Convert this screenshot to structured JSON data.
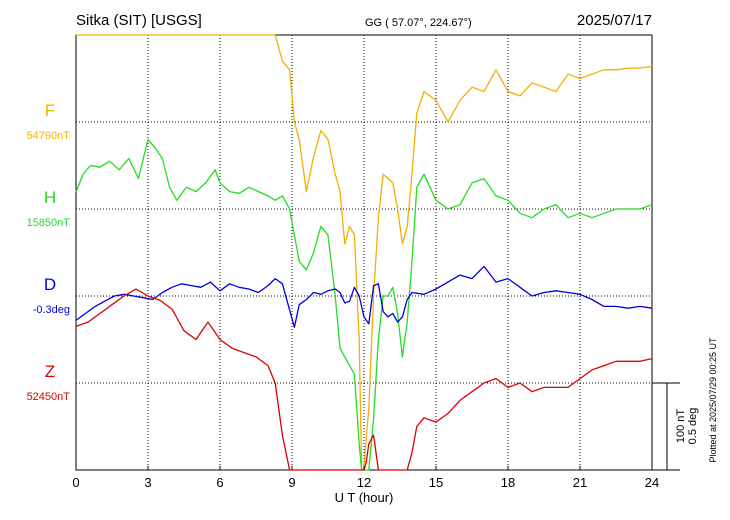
{
  "header": {
    "station": "Sitka (SIT)  [USGS]",
    "coords": "GG ( 57.07°, 224.67°)",
    "date": "2025/07/17"
  },
  "footer": {
    "xlabel": "U T (hour)",
    "plotted": "Plotted at 2025/07/29 00:25 UT"
  },
  "scale": {
    "nt": "100 nT",
    "deg": "0.5 deg"
  },
  "chart_data": {
    "type": "line",
    "xlabel": "U T (hour)",
    "xlim": [
      0,
      24
    ],
    "xticks": [
      0,
      3,
      6,
      9,
      12,
      15,
      18,
      21,
      24
    ],
    "xtick_labels": [
      "0",
      "3",
      "6",
      "9",
      "12",
      "15",
      "18",
      "21",
      "24"
    ],
    "grid": true,
    "y_units": "nT (D in deg); each series plotted relative to its baseline, 100 nT per scale division",
    "series": [
      {
        "name": "F",
        "baseline_label": "54790nT",
        "color": "#f2b000",
        "x": [
          0,
          0.4,
          0.8,
          1.2,
          1.6,
          2.0,
          2.5,
          3.0,
          3.5,
          4.0,
          4.5,
          5.0,
          5.5,
          5.8,
          6.0,
          6.3,
          6.8,
          7.2,
          7.6,
          8.0,
          8.3,
          8.6,
          8.9,
          9.1,
          9.3,
          9.6,
          9.9,
          10.2,
          10.5,
          10.8,
          11.0,
          11.2,
          11.4,
          11.6,
          11.8,
          11.9,
          12.0,
          12.1,
          12.2,
          12.4,
          12.6,
          12.8,
          13.0,
          13.2,
          13.4,
          13.6,
          13.8,
          14.0,
          14.2,
          14.5,
          15.0,
          15.5,
          16.0,
          16.5,
          17.0,
          17.5,
          18.0,
          18.5,
          19.0,
          19.5,
          20.0,
          20.5,
          21.0,
          21.5,
          22.0,
          22.5,
          23.0,
          23.5,
          24.0
        ],
        "values": [
          132,
          128,
          140,
          152,
          185,
          210,
          220,
          220,
          218,
          210,
          202,
          196,
          190,
          206,
          192,
          168,
          164,
          150,
          150,
          142,
          110,
          70,
          60,
          0,
          -20,
          -80,
          -40,
          -10,
          -20,
          -60,
          -80,
          -140,
          -120,
          -130,
          -250,
          -430,
          -445,
          -360,
          -330,
          -200,
          -110,
          -60,
          -65,
          -70,
          -100,
          -140,
          -120,
          -60,
          10,
          35,
          25,
          0,
          25,
          40,
          35,
          60,
          35,
          30,
          45,
          40,
          35,
          55,
          50,
          55,
          60,
          60,
          62,
          62,
          64
        ]
      },
      {
        "name": "H",
        "baseline_label": "15850nT",
        "color": "#22dd22",
        "x": [
          0,
          0.3,
          0.6,
          1.0,
          1.4,
          1.8,
          2.2,
          2.6,
          3.0,
          3.3,
          3.6,
          3.9,
          4.2,
          4.6,
          5.0,
          5.4,
          5.8,
          6.0,
          6.4,
          6.8,
          7.2,
          7.6,
          8.0,
          8.3,
          8.6,
          8.9,
          9.1,
          9.3,
          9.6,
          9.9,
          10.2,
          10.5,
          10.8,
          11.0,
          11.2,
          11.4,
          11.6,
          11.8,
          11.9,
          12.0,
          12.1,
          12.2,
          12.4,
          12.6,
          12.8,
          13.0,
          13.2,
          13.4,
          13.6,
          13.8,
          14.0,
          14.2,
          14.5,
          15.0,
          15.5,
          16.0,
          16.5,
          17.0,
          17.5,
          18.0,
          18.5,
          19.0,
          19.5,
          20.0,
          20.5,
          21.0,
          21.5,
          22.0,
          22.5,
          23.0,
          23.5,
          24.0
        ],
        "values": [
          20,
          40,
          50,
          48,
          55,
          45,
          58,
          35,
          80,
          70,
          58,
          25,
          10,
          25,
          20,
          30,
          45,
          30,
          20,
          18,
          25,
          20,
          15,
          10,
          15,
          0,
          -30,
          -60,
          -70,
          -50,
          -20,
          -30,
          -100,
          -160,
          -170,
          -180,
          -190,
          -270,
          -400,
          -460,
          -520,
          -380,
          -240,
          -150,
          -100,
          -100,
          -90,
          -120,
          -170,
          -130,
          -60,
          25,
          40,
          10,
          0,
          5,
          30,
          35,
          15,
          10,
          -5,
          -10,
          0,
          5,
          -10,
          -5,
          -10,
          -5,
          0,
          0,
          0,
          5
        ]
      },
      {
        "name": "D",
        "baseline_label": "-0.3deg",
        "color": "#0000dd",
        "x": [
          0,
          0.4,
          0.8,
          1.2,
          1.6,
          2.0,
          2.4,
          2.8,
          3.2,
          3.6,
          4.0,
          4.4,
          4.8,
          5.2,
          5.6,
          6.0,
          6.4,
          6.8,
          7.2,
          7.6,
          8.0,
          8.3,
          8.6,
          8.9,
          9.1,
          9.3,
          9.6,
          9.9,
          10.2,
          10.5,
          10.8,
          11.0,
          11.2,
          11.4,
          11.6,
          11.8,
          12.0,
          12.2,
          12.4,
          12.6,
          12.8,
          13.0,
          13.2,
          13.4,
          13.6,
          13.8,
          14.0,
          14.5,
          15.0,
          15.5,
          16.0,
          16.5,
          17.0,
          17.5,
          18.0,
          18.5,
          19.0,
          19.5,
          20.0,
          20.5,
          21.0,
          21.5,
          22.0,
          22.5,
          23.0,
          23.5,
          24.0
        ],
        "values": [
          -0.14,
          -0.1,
          -0.06,
          -0.03,
          0.0,
          0.01,
          0.0,
          -0.01,
          -0.02,
          0.02,
          0.05,
          0.07,
          0.06,
          0.05,
          0.08,
          0.03,
          0.07,
          0.05,
          0.04,
          0.02,
          0.06,
          0.1,
          0.07,
          -0.08,
          -0.18,
          -0.05,
          -0.02,
          0.02,
          0.01,
          0.03,
          0.04,
          0.02,
          -0.04,
          -0.03,
          0.05,
          0.0,
          -0.12,
          -0.16,
          0.06,
          0.07,
          -0.09,
          -0.12,
          -0.1,
          -0.15,
          -0.12,
          -0.02,
          0.02,
          0.01,
          0.04,
          0.08,
          0.12,
          0.1,
          0.17,
          0.08,
          0.1,
          0.05,
          0.0,
          0.02,
          0.03,
          0.02,
          0.01,
          -0.02,
          -0.06,
          -0.06,
          -0.07,
          -0.06,
          -0.07
        ]
      },
      {
        "name": "Z",
        "baseline_label": "52450nT",
        "color": "#dd0000",
        "x": [
          0,
          0.5,
          1.0,
          1.5,
          2.0,
          2.5,
          3.0,
          3.5,
          4.0,
          4.5,
          5.0,
          5.5,
          6.0,
          6.5,
          7.0,
          7.5,
          8.0,
          8.3,
          8.6,
          8.9,
          9.1,
          9.3,
          9.6,
          9.9,
          10.2,
          10.5,
          10.8,
          11.0,
          11.2,
          11.4,
          11.6,
          11.8,
          11.9,
          12.0,
          12.1,
          12.2,
          12.4,
          12.6,
          12.8,
          13.0,
          13.2,
          13.4,
          13.6,
          13.8,
          14.0,
          14.2,
          14.5,
          15.0,
          15.5,
          16.0,
          16.5,
          17.0,
          17.5,
          18.0,
          18.5,
          19.0,
          19.5,
          20.0,
          20.5,
          21.0,
          21.5,
          22.0,
          22.5,
          23.0,
          23.5,
          24.0
        ],
        "values": [
          65,
          70,
          80,
          90,
          100,
          108,
          100,
          95,
          85,
          60,
          50,
          70,
          50,
          40,
          35,
          30,
          20,
          0,
          -60,
          -120,
          -150,
          -190,
          -170,
          -180,
          -150,
          -140,
          -150,
          -130,
          -120,
          -180,
          -220,
          -200,
          -180,
          -120,
          -90,
          -70,
          -60,
          -140,
          -200,
          -220,
          -210,
          -200,
          -150,
          -110,
          -80,
          -50,
          -40,
          -45,
          -35,
          -20,
          -10,
          0,
          5,
          -5,
          0,
          -10,
          -5,
          -5,
          -5,
          5,
          15,
          20,
          25,
          25,
          25,
          28
        ]
      }
    ]
  }
}
